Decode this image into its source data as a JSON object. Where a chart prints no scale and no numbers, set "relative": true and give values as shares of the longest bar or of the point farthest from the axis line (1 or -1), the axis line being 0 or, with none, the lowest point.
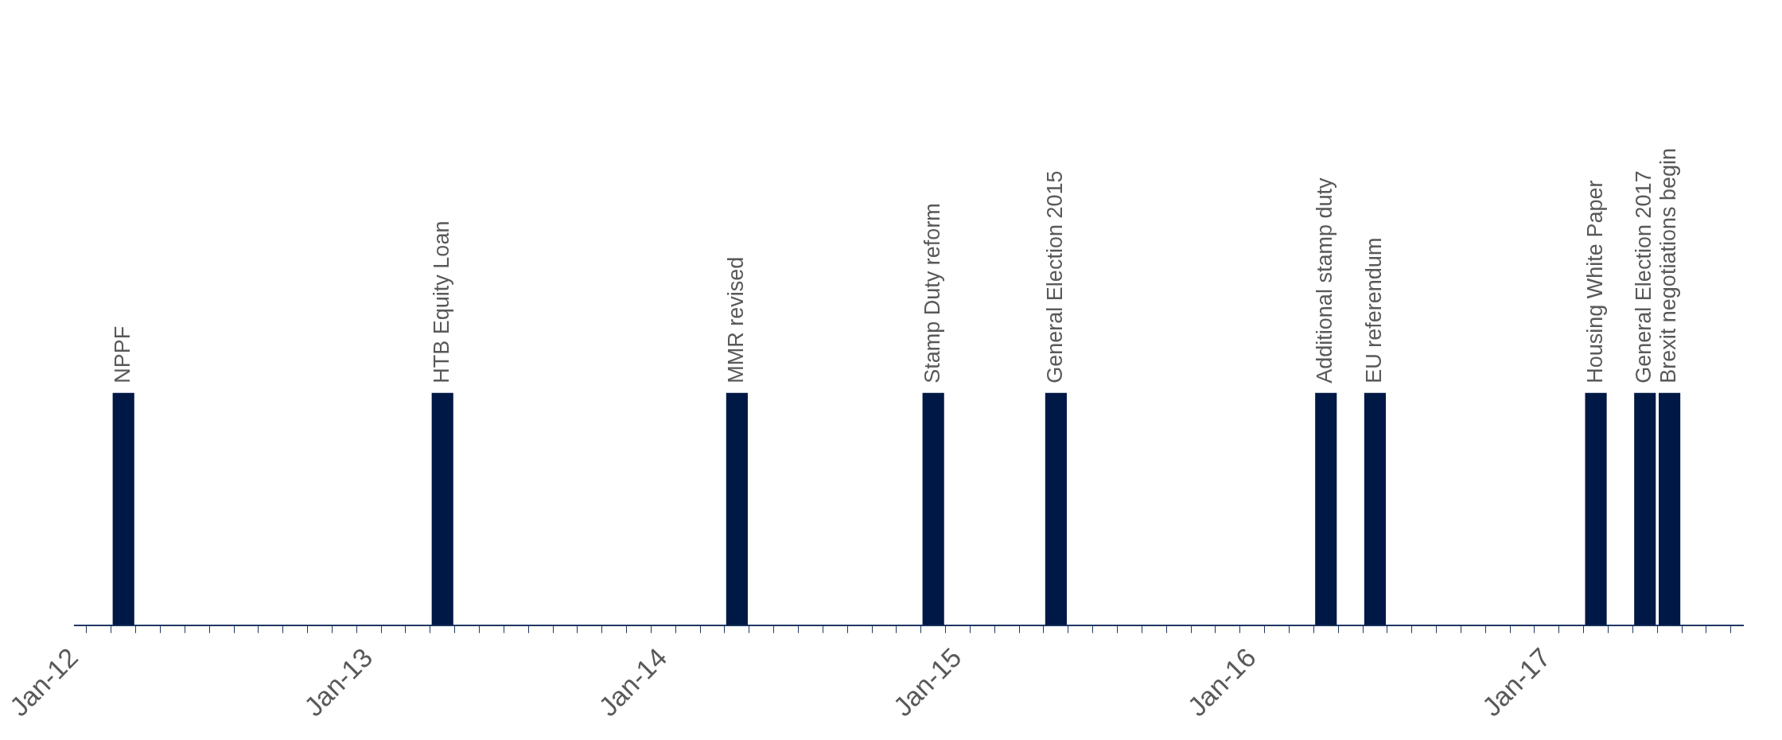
{
  "chart_data": {
    "type": "bar",
    "relative": true,
    "color": "#001845",
    "categories": [
      "Jan-12",
      null,
      null,
      null,
      null,
      null,
      null,
      null,
      null,
      null,
      null,
      null,
      "Jan-13",
      null,
      null,
      null,
      null,
      null,
      null,
      null,
      null,
      null,
      null,
      null,
      "Jan-14",
      null,
      null,
      null,
      null,
      null,
      null,
      null,
      null,
      null,
      null,
      null,
      "Jan-15",
      null,
      null,
      null,
      null,
      null,
      null,
      null,
      null,
      null,
      null,
      null,
      "Jan-16",
      null,
      null,
      null,
      null,
      null,
      null,
      null,
      null,
      null,
      null,
      null,
      "Jan-17",
      null,
      null,
      null,
      null,
      null,
      null,
      null,
      null
    ],
    "values": [
      null,
      null,
      1,
      null,
      null,
      null,
      null,
      null,
      null,
      null,
      null,
      null,
      null,
      null,
      null,
      1,
      null,
      null,
      null,
      null,
      null,
      null,
      null,
      null,
      null,
      null,
      null,
      1,
      null,
      null,
      null,
      null,
      null,
      null,
      null,
      1,
      null,
      null,
      null,
      null,
      1,
      null,
      null,
      null,
      null,
      null,
      null,
      null,
      null,
      null,
      null,
      1,
      null,
      1,
      null,
      null,
      null,
      null,
      null,
      null,
      null,
      null,
      1,
      null,
      1,
      1,
      null,
      null,
      null
    ],
    "annotations": [
      "NPPF",
      "HTB Equity Loan",
      "MMR revised",
      "Stamp Duty reform",
      "General Election 2015",
      "Additional stamp duty",
      "EU referendum",
      "Housing White Paper",
      "General Election 2017",
      "Brexit negotiations begin"
    ],
    "grid": false,
    "legend": false
  }
}
